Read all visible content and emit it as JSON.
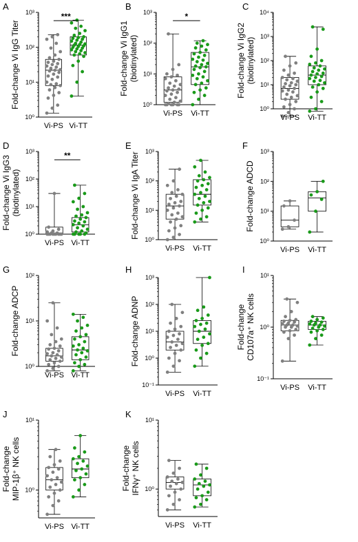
{
  "colors": {
    "Vi-PS": "#808080",
    "Vi-TT": "#1a9a1a",
    "axis": "#000000"
  },
  "chart_data": [
    {
      "panel": "A",
      "type": "box",
      "ylabel": [
        "Fold-change Vi IgG Titer"
      ],
      "yscale": "log",
      "ylim": [
        1,
        1000
      ],
      "yticks": [
        "10⁰",
        "10¹",
        "10²",
        "10³"
      ],
      "categories": [
        "Vi-PS",
        "Vi-TT"
      ],
      "significance": "***",
      "series": [
        {
          "name": "Vi-PS",
          "min": 1.3,
          "q1": 8,
          "median": 22,
          "q3": 45,
          "max": 230,
          "points": [
            1.3,
            1.8,
            2.2,
            3.5,
            4.2,
            5,
            6,
            7,
            8,
            8.5,
            9,
            10,
            12,
            14,
            15,
            17,
            19,
            21,
            22,
            23,
            25,
            27,
            29,
            32,
            34,
            37,
            40,
            45,
            50,
            60,
            75,
            95,
            130,
            170,
            200,
            230
          ]
        },
        {
          "name": "Vi-TT",
          "min": 4,
          "q1": 60,
          "median": 115,
          "q3": 200,
          "max": 600,
          "points": [
            4,
            10,
            20,
            30,
            40,
            55,
            60,
            65,
            70,
            75,
            80,
            85,
            90,
            95,
            100,
            105,
            110,
            115,
            120,
            125,
            130,
            140,
            150,
            160,
            170,
            180,
            190,
            200,
            220,
            250,
            300,
            350,
            400,
            500,
            600
          ]
        }
      ]
    },
    {
      "panel": "B",
      "type": "box",
      "ylabel": [
        "Fold-change Vi IgG1",
        "(biotinylated)"
      ],
      "yscale": "log",
      "ylim": [
        1,
        1000
      ],
      "yticks": [
        "10⁰",
        "10¹",
        "10²",
        "10³"
      ],
      "categories": [
        "Vi-PS",
        "Vi-TT"
      ],
      "significance": "*",
      "series": [
        {
          "name": "Vi-PS",
          "min": 1,
          "q1": 1.2,
          "median": 3,
          "q3": 8,
          "max": 200,
          "points": [
            1,
            1,
            1,
            1,
            1,
            1,
            1.1,
            1.2,
            1.3,
            1.5,
            1.7,
            2,
            2.2,
            2.5,
            2.8,
            3,
            3.2,
            3.5,
            4,
            4.5,
            5,
            6,
            7,
            8,
            9,
            10,
            14,
            20,
            200
          ]
        },
        {
          "name": "Vi-TT",
          "min": 1,
          "q1": 4.5,
          "median": 17,
          "q3": 50,
          "max": 120,
          "points": [
            1,
            1.5,
            2,
            2.5,
            3,
            3.5,
            4.5,
            5,
            6,
            7,
            8,
            9,
            10,
            12,
            14,
            16,
            17,
            18,
            20,
            22,
            25,
            28,
            30,
            35,
            40,
            45,
            50,
            60,
            70,
            80,
            90,
            100,
            120
          ]
        }
      ]
    },
    {
      "panel": "C",
      "type": "box",
      "ylabel": [
        "Fold-change Vi IgG2",
        "(biotinylated)"
      ],
      "yscale": "log",
      "ylim": [
        1,
        10000
      ],
      "yticks": [
        "10⁰",
        "10¹",
        "10²",
        "10³",
        "10⁴"
      ],
      "categories": [
        "Vi-PS",
        "Vi-TT"
      ],
      "significance": "",
      "series": [
        {
          "name": "Vi-PS",
          "min": 0.5,
          "q1": 2.5,
          "median": 7,
          "q3": 20,
          "max": 150,
          "points": [
            0.5,
            0.7,
            1,
            1.2,
            1.5,
            2,
            2.5,
            3,
            3.5,
            4,
            5,
            5.5,
            6,
            7,
            8,
            9,
            10,
            11,
            12,
            14,
            16,
            18,
            20,
            25,
            30,
            40,
            60,
            80,
            150
          ]
        },
        {
          "name": "Vi-TT",
          "min": 0.8,
          "q1": 10,
          "median": 25,
          "q3": 60,
          "max": 2500,
          "points": [
            0.8,
            1,
            2,
            3,
            5,
            7,
            8,
            10,
            12,
            14,
            15,
            18,
            20,
            22,
            25,
            28,
            30,
            35,
            40,
            45,
            50,
            60,
            70,
            80,
            100,
            150,
            300,
            2000,
            2500
          ]
        }
      ]
    },
    {
      "panel": "D",
      "type": "box",
      "ylabel": [
        "Fold-change Vi IgG3",
        "(biotinylated)"
      ],
      "yscale": "log",
      "ylim": [
        1,
        1000
      ],
      "yticks": [
        "10⁰",
        "10¹",
        "10²",
        "10³"
      ],
      "categories": [
        "Vi-PS",
        "Vi-TT"
      ],
      "significance": "**",
      "series": [
        {
          "name": "Vi-PS",
          "min": 1,
          "q1": 1,
          "median": 1.1,
          "q3": 1.8,
          "max": 30,
          "points": [
            1,
            1,
            1,
            1,
            1,
            1,
            1,
            1,
            1,
            1.1,
            1.1,
            1.2,
            1.3,
            1.5,
            1.8,
            30
          ]
        },
        {
          "name": "Vi-TT",
          "min": 1,
          "q1": 1.2,
          "median": 2.2,
          "q3": 4,
          "max": 60,
          "points": [
            1,
            1,
            1,
            1,
            1,
            1.1,
            1.2,
            1.3,
            1.5,
            1.7,
            2,
            2.2,
            2.5,
            2.8,
            3,
            3.5,
            4,
            4.5,
            5,
            6,
            8,
            10,
            15,
            20,
            30,
            60
          ]
        }
      ]
    },
    {
      "panel": "E",
      "type": "box",
      "ylabel": [
        "Fold-change Vi IgA Titer"
      ],
      "yscale": "log",
      "ylim": [
        1,
        1000
      ],
      "yticks": [
        "10⁰",
        "10¹",
        "10²",
        "10³"
      ],
      "categories": [
        "Vi-PS",
        "Vi-TT"
      ],
      "significance": "",
      "series": [
        {
          "name": "Vi-PS",
          "min": 1,
          "q1": 5,
          "median": 14,
          "q3": 35,
          "max": 250,
          "points": [
            1,
            1.2,
            1.5,
            2,
            2.5,
            3,
            4,
            5,
            6,
            7,
            8,
            10,
            12,
            14,
            16,
            18,
            20,
            25,
            30,
            35,
            40,
            50,
            70,
            100,
            250
          ]
        },
        {
          "name": "Vi-TT",
          "min": 4,
          "q1": 15,
          "median": 35,
          "q3": 110,
          "max": 500,
          "points": [
            4,
            5,
            6,
            8,
            10,
            12,
            15,
            18,
            20,
            25,
            30,
            35,
            40,
            50,
            60,
            70,
            80,
            100,
            110,
            130,
            150,
            200,
            300,
            500
          ]
        }
      ]
    },
    {
      "panel": "F",
      "type": "box",
      "ylabel": [
        "Fold-change ADCD"
      ],
      "yscale": "log",
      "ylim": [
        1,
        1000
      ],
      "yticks": [
        "10⁰",
        "10¹",
        "10²",
        "10³"
      ],
      "categories": [
        "Vi-PS",
        "Vi-TT"
      ],
      "significance": "",
      "series": [
        {
          "name": "Vi-PS",
          "min": 2.5,
          "q1": 3,
          "median": 5,
          "q3": 15,
          "max": 22,
          "points": [
            2.5,
            3,
            5,
            15,
            22
          ]
        },
        {
          "name": "Vi-TT",
          "min": 2,
          "q1": 10,
          "median": 28,
          "q3": 45,
          "max": 100,
          "points": [
            2,
            10,
            25,
            35,
            45,
            100
          ]
        }
      ]
    },
    {
      "panel": "G",
      "type": "box",
      "ylabel": [
        "Fold-change ADCP"
      ],
      "yscale": "log",
      "ylim": [
        1,
        100
      ],
      "yticks": [
        "10⁰",
        "10¹",
        "10²"
      ],
      "categories": [
        "Vi-PS",
        "Vi-TT"
      ],
      "significance": "",
      "series": [
        {
          "name": "Vi-PS",
          "min": 0.8,
          "q1": 1.3,
          "median": 1.7,
          "q3": 2.5,
          "max": 25,
          "points": [
            0.8,
            0.9,
            1,
            1.1,
            1.2,
            1.3,
            1.4,
            1.5,
            1.6,
            1.7,
            1.8,
            1.9,
            2,
            2.2,
            2.4,
            2.5,
            2.8,
            3,
            3.5,
            4,
            5,
            7,
            10,
            25
          ]
        },
        {
          "name": "Vi-TT",
          "min": 0.8,
          "q1": 1.4,
          "median": 2.3,
          "q3": 4.5,
          "max": 14,
          "points": [
            0.8,
            1,
            1.1,
            1.2,
            1.4,
            1.6,
            1.8,
            2,
            2.2,
            2.3,
            2.5,
            2.8,
            3,
            3.5,
            4,
            4.5,
            5,
            6,
            7,
            8,
            10,
            12,
            14
          ]
        }
      ]
    },
    {
      "panel": "H",
      "type": "box",
      "ylabel": [
        "Fold-change ADNP"
      ],
      "yscale": "log",
      "ylim": [
        0.1,
        1000
      ],
      "yticks": [
        "10⁻¹",
        "10⁰",
        "10¹",
        "10²",
        "10³"
      ],
      "categories": [
        "Vi-PS",
        "Vi-TT"
      ],
      "significance": "",
      "series": [
        {
          "name": "Vi-PS",
          "min": 0.3,
          "q1": 2,
          "median": 4,
          "q3": 10,
          "max": 100,
          "points": [
            0.3,
            0.5,
            0.8,
            1,
            1.5,
            2,
            2.5,
            3,
            3.5,
            4,
            5,
            6,
            7,
            8,
            10,
            12,
            15,
            20,
            30,
            50,
            100
          ]
        },
        {
          "name": "Vi-TT",
          "min": 0.5,
          "q1": 3.5,
          "median": 10,
          "q3": 25,
          "max": 1000,
          "points": [
            0.5,
            1,
            1.5,
            2,
            3,
            3.5,
            5,
            6,
            8,
            10,
            12,
            15,
            18,
            20,
            25,
            30,
            40,
            60,
            80,
            1000
          ]
        }
      ]
    },
    {
      "panel": "I",
      "type": "box",
      "ylabel": [
        "Fold-change",
        "CD107a⁺ NK cells"
      ],
      "yscale": "log",
      "ylim": [
        0.1,
        10
      ],
      "yticks": [
        "10⁻¹",
        "10⁰",
        "10¹"
      ],
      "categories": [
        "Vi-PS",
        "Vi-TT"
      ],
      "significance": "",
      "series": [
        {
          "name": "Vi-PS",
          "min": 0.22,
          "q1": 0.85,
          "median": 1.1,
          "q3": 1.35,
          "max": 3.5,
          "points": [
            0.22,
            0.6,
            0.7,
            0.8,
            0.85,
            0.9,
            1,
            1,
            1.05,
            1.1,
            1.1,
            1.15,
            1.2,
            1.25,
            1.3,
            1.35,
            1.4,
            1.6,
            2,
            3,
            3.5
          ]
        },
        {
          "name": "Vi-TT",
          "min": 0.45,
          "q1": 0.9,
          "median": 1.1,
          "q3": 1.3,
          "max": 1.6,
          "points": [
            0.45,
            0.6,
            0.7,
            0.8,
            0.85,
            0.9,
            0.95,
            1,
            1.05,
            1.1,
            1.1,
            1.15,
            1.2,
            1.25,
            1.3,
            1.4,
            1.5,
            1.6
          ]
        }
      ]
    },
    {
      "panel": "J",
      "type": "box",
      "ylabel": [
        "Fold-change",
        "MIP-1β⁺ NK cells"
      ],
      "yscale": "log",
      "ylim": [
        0.4,
        10
      ],
      "yticks": [
        "10⁰",
        "10¹"
      ],
      "categories": [
        "Vi-PS",
        "Vi-TT"
      ],
      "significance": "",
      "series": [
        {
          "name": "Vi-PS",
          "min": 0.45,
          "q1": 1,
          "median": 1.4,
          "q3": 2.1,
          "max": 3.8,
          "points": [
            0.45,
            0.6,
            0.7,
            0.8,
            0.9,
            1,
            1.1,
            1.2,
            1.3,
            1.4,
            1.5,
            1.6,
            1.8,
            2,
            2.1,
            2.3,
            2.6,
            3,
            3.8
          ]
        },
        {
          "name": "Vi-TT",
          "min": 0.8,
          "q1": 1.5,
          "median": 2,
          "q3": 2.8,
          "max": 6,
          "points": [
            0.8,
            1,
            1.2,
            1.4,
            1.5,
            1.7,
            1.9,
            2,
            2.2,
            2.4,
            2.6,
            2.8,
            3,
            3.5,
            4,
            6
          ]
        }
      ]
    },
    {
      "panel": "K",
      "type": "box",
      "ylabel": [
        "Fold-change",
        "IFNγ⁺ NK cells"
      ],
      "yscale": "log",
      "ylim": [
        0.4,
        10
      ],
      "yticks": [
        "10⁰",
        "10¹"
      ],
      "categories": [
        "Vi-PS",
        "Vi-TT"
      ],
      "significance": "",
      "series": [
        {
          "name": "Vi-PS",
          "min": 0.5,
          "q1": 1,
          "median": 1.25,
          "q3": 1.5,
          "max": 2.6,
          "points": [
            0.5,
            0.6,
            0.7,
            0.8,
            0.9,
            1,
            1.1,
            1.2,
            1.25,
            1.3,
            1.4,
            1.5,
            1.7,
            2,
            2.6
          ]
        },
        {
          "name": "Vi-TT",
          "min": 0.55,
          "q1": 0.8,
          "median": 1.15,
          "q3": 1.4,
          "max": 2.3,
          "points": [
            0.55,
            0.6,
            0.7,
            0.75,
            0.8,
            0.9,
            1,
            1.1,
            1.15,
            1.2,
            1.3,
            1.4,
            1.6,
            2,
            2.3
          ]
        }
      ]
    }
  ]
}
